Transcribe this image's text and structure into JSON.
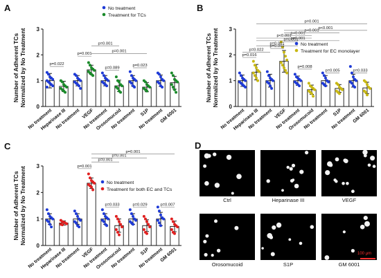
{
  "chart_data": [
    {
      "type": "scatter",
      "panel_label": "A",
      "ylabel": "Number of Adherent TCs\nNormalized by No Treatment",
      "ylim": [
        0,
        3
      ],
      "yticks": [
        0,
        1,
        2,
        3
      ],
      "categories": [
        "No treatment",
        "Heparinase III",
        "No treatment",
        "VEGF",
        "No treatment",
        "Orosomucoid",
        "No treatment",
        "S1P",
        "No treatment",
        "GM 6001"
      ],
      "legend": [
        {
          "name": "No treatment",
          "color": "#1f3bd6"
        },
        {
          "name": "Treatment for TCs",
          "color": "#1a8a2a"
        }
      ],
      "legend_position": "top-right",
      "series": [
        {
          "name": "No treatment",
          "color": "#1f3bd6",
          "groups": [
            {
              "cat": 0,
              "mean": 1.0,
              "sd": 0.28,
              "points": [
                1.32,
                1.25,
                1.15,
                1.1,
                1.05,
                1.0,
                0.95,
                0.9,
                0.85,
                0.8,
                0.75
              ]
            },
            {
              "cat": 2,
              "mean": 1.0,
              "sd": 0.2,
              "points": [
                1.25,
                1.2,
                1.1,
                1.05,
                1.0,
                0.95,
                0.9,
                0.85,
                0.8,
                0.7
              ]
            },
            {
              "cat": 4,
              "mean": 1.0,
              "sd": 0.2,
              "points": [
                1.3,
                1.2,
                1.1,
                1.05,
                1.0,
                0.95,
                0.9,
                0.85,
                0.8
              ]
            },
            {
              "cat": 6,
              "mean": 1.0,
              "sd": 0.2,
              "points": [
                1.35,
                1.2,
                1.1,
                1.05,
                1.0,
                0.95,
                0.9,
                0.8,
                0.75
              ]
            },
            {
              "cat": 8,
              "mean": 1.0,
              "sd": 0.22,
              "points": [
                1.3,
                1.25,
                1.15,
                1.05,
                1.0,
                0.95,
                0.9,
                0.8,
                0.75
              ]
            }
          ]
        },
        {
          "name": "Treatment for TCs",
          "color": "#1a8a2a",
          "groups": [
            {
              "cat": 1,
              "mean": 0.78,
              "sd": 0.2,
              "points": [
                1.0,
                0.95,
                0.85,
                0.8,
                0.75,
                0.7,
                0.65,
                0.6,
                0.55
              ]
            },
            {
              "cat": 3,
              "mean": 1.42,
              "sd": 0.18,
              "points": [
                1.7,
                1.6,
                1.5,
                1.45,
                1.4,
                1.35,
                1.3,
                1.25,
                1.2
              ]
            },
            {
              "cat": 5,
              "mean": 0.8,
              "sd": 0.22,
              "points": [
                1.15,
                1.0,
                0.95,
                0.85,
                0.8,
                0.75,
                0.7,
                0.6,
                0.55
              ]
            },
            {
              "cat": 7,
              "mean": 0.75,
              "sd": 0.18,
              "points": [
                1.0,
                0.95,
                0.85,
                0.8,
                0.75,
                0.7,
                0.65,
                0.6
              ]
            },
            {
              "cat": 9,
              "mean": 0.92,
              "sd": 0.25,
              "points": [
                1.3,
                1.2,
                1.05,
                1.0,
                0.95,
                0.85,
                0.75,
                0.65,
                0.55
              ]
            }
          ]
        }
      ],
      "annotations": [
        {
          "text": "p=0.022",
          "from": 0,
          "to": 1,
          "y": 1.55
        },
        {
          "text": "p=0.001",
          "from": 2,
          "to": 3,
          "y": 1.95
        },
        {
          "text": "p=0.089",
          "from": 4,
          "to": 5,
          "y": 1.4
        },
        {
          "text": "p=0.023",
          "from": 6,
          "to": 7,
          "y": 1.5
        },
        {
          "text": "p=0.001",
          "from": 3,
          "to": 5,
          "y": 2.35
        },
        {
          "text": "p=0.001",
          "from": 3,
          "to": 7,
          "y": 2.05
        }
      ]
    },
    {
      "type": "scatter",
      "panel_label": "B",
      "ylabel": "Number of Adherent TCs\nNormalized by No Treatment",
      "ylim": [
        0,
        3
      ],
      "yticks": [
        0,
        1,
        2,
        3
      ],
      "categories": [
        "No treatment",
        "Heparinase III",
        "No treatment",
        "VEGF",
        "No treatment",
        "Orosomucoid",
        "No treatment",
        "S1P",
        "No treatment",
        "GM 6001"
      ],
      "legend": [
        {
          "name": "No treatment",
          "color": "#1f3bd6"
        },
        {
          "name": "Treatment for EC monolayer",
          "color": "#c8b814"
        }
      ],
      "legend_position": "right",
      "series": [
        {
          "name": "No treatment",
          "color": "#1f3bd6",
          "groups": [
            {
              "cat": 0,
              "mean": 1.0,
              "sd": 0.22,
              "points": [
                1.3,
                1.2,
                1.1,
                1.05,
                1.0,
                0.95,
                0.9,
                0.85,
                0.8,
                0.75
              ]
            },
            {
              "cat": 2,
              "mean": 1.0,
              "sd": 0.25,
              "points": [
                1.35,
                1.2,
                1.1,
                1.05,
                1.0,
                0.95,
                0.9,
                0.8,
                0.7
              ]
            },
            {
              "cat": 4,
              "mean": 1.0,
              "sd": 0.18,
              "points": [
                1.25,
                1.15,
                1.1,
                1.05,
                1.0,
                0.95,
                0.9,
                0.85,
                0.8
              ]
            },
            {
              "cat": 6,
              "mean": 1.0,
              "sd": 0.2,
              "points": [
                1.3,
                1.2,
                1.1,
                1.0,
                0.95,
                0.9,
                0.85,
                0.8
              ]
            },
            {
              "cat": 8,
              "mean": 1.0,
              "sd": 0.25,
              "points": [
                1.55,
                1.3,
                1.15,
                1.05,
                1.0,
                0.95,
                0.9,
                0.8,
                0.75
              ]
            }
          ]
        },
        {
          "name": "Treatment for EC monolayer",
          "color": "#c8b814",
          "groups": [
            {
              "cat": 1,
              "mean": 1.33,
              "sd": 0.3,
              "points": [
                1.75,
                1.6,
                1.5,
                1.4,
                1.35,
                1.3,
                1.2,
                1.1,
                1.0
              ]
            },
            {
              "cat": 3,
              "mean": 1.75,
              "sd": 0.42,
              "points": [
                2.5,
                2.3,
                2.1,
                1.95,
                1.8,
                1.7,
                1.6,
                1.5,
                1.4,
                1.3
              ]
            },
            {
              "cat": 5,
              "mean": 0.65,
              "sd": 0.18,
              "points": [
                0.9,
                0.8,
                0.75,
                0.7,
                0.65,
                0.6,
                0.55,
                0.5,
                0.4
              ]
            },
            {
              "cat": 7,
              "mean": 0.7,
              "sd": 0.15,
              "points": [
                0.9,
                0.85,
                0.75,
                0.7,
                0.65,
                0.6,
                0.55,
                0.5
              ]
            },
            {
              "cat": 9,
              "mean": 0.72,
              "sd": 0.22,
              "points": [
                1.0,
                0.95,
                0.85,
                0.75,
                0.7,
                0.6,
                0.55,
                0.45
              ]
            }
          ]
        }
      ],
      "annotations": [
        {
          "text": "p=0.016",
          "from": 0,
          "to": 1,
          "y": 1.9
        },
        {
          "text": "p=0.022",
          "from": 0,
          "to": 2,
          "y": 2.1
        },
        {
          "text": "p=0.001",
          "from": 2,
          "to": 3,
          "y": 2.25
        },
        {
          "text": "p=0.001",
          "from": 1,
          "to": 4,
          "y": 2.35
        },
        {
          "text": "p=0.001",
          "from": 3,
          "to": 4,
          "y": 2.5
        },
        {
          "text": "p=0.008",
          "from": 4,
          "to": 5,
          "y": 1.45
        },
        {
          "text": "p=0.005",
          "from": 6,
          "to": 7,
          "y": 1.3
        },
        {
          "text": "p=0.033",
          "from": 8,
          "to": 9,
          "y": 1.3
        },
        {
          "text": "p<0.001",
          "from": 1,
          "to": 5,
          "y": 2.65
        },
        {
          "text": "p<0.001",
          "from": 3,
          "to": 5,
          "y": 2.75
        },
        {
          "text": "p<0.001",
          "from": 3,
          "to": 7,
          "y": 2.85
        },
        {
          "text": "p<0.001",
          "from": 3,
          "to": 9,
          "y": 2.95
        },
        {
          "text": "p=0.001",
          "from": 1,
          "to": 7,
          "y": 2.55
        },
        {
          "text": "p=0.001",
          "from": 1,
          "to": 9,
          "y": 3.2
        }
      ]
    },
    {
      "type": "scatter",
      "panel_label": "C",
      "ylabel": "Number of Adherent TCs\nNormalized by No Treatment",
      "ylim": [
        0,
        3
      ],
      "yticks": [
        0,
        1,
        2,
        3
      ],
      "categories": [
        "No treatment",
        "Heparinase III",
        "No treatment",
        "VEGF",
        "No treatment",
        "Orosomucoid",
        "No treatment",
        "S1P",
        "No treatment",
        "GM 6001"
      ],
      "legend": [
        {
          "name": "No treatment",
          "color": "#1f3bd6"
        },
        {
          "name": "Treatment for both EC and TCs",
          "color": "#e02020"
        }
      ],
      "legend_position": "right",
      "series": [
        {
          "name": "No treatment",
          "color": "#1f3bd6",
          "groups": [
            {
              "cat": 0,
              "mean": 1.0,
              "sd": 0.2,
              "points": [
                1.35,
                1.2,
                1.1,
                1.05,
                1.0,
                0.95,
                0.9,
                0.8,
                0.7
              ]
            },
            {
              "cat": 2,
              "mean": 1.0,
              "sd": 0.2,
              "points": [
                1.3,
                1.2,
                1.1,
                1.0,
                0.95,
                0.9,
                0.85,
                0.75,
                0.7
              ]
            },
            {
              "cat": 4,
              "mean": 1.0,
              "sd": 0.2,
              "points": [
                1.35,
                1.2,
                1.1,
                1.05,
                1.0,
                0.95,
                0.9,
                0.8,
                0.75
              ]
            },
            {
              "cat": 6,
              "mean": 1.0,
              "sd": 0.2,
              "points": [
                1.35,
                1.2,
                1.1,
                1.0,
                0.95,
                0.9,
                0.85,
                0.8
              ]
            },
            {
              "cat": 8,
              "mean": 1.0,
              "sd": 0.25,
              "points": [
                1.45,
                1.3,
                1.15,
                1.05,
                1.0,
                0.95,
                0.85,
                0.75
              ]
            }
          ]
        },
        {
          "name": "Treatment for both EC and TCs",
          "color": "#e02020",
          "groups": [
            {
              "cat": 1,
              "mean": 0.85,
              "sd": 0.08,
              "points": [
                0.95,
                0.9,
                0.88,
                0.85,
                0.82,
                0.8,
                0.78
              ]
            },
            {
              "cat": 3,
              "mean": 2.35,
              "sd": 0.2,
              "points": [
                2.7,
                2.55,
                2.45,
                2.4,
                2.35,
                2.3,
                2.25,
                2.2,
                2.1
              ]
            },
            {
              "cat": 5,
              "mean": 0.75,
              "sd": 0.25,
              "points": [
                1.1,
                1.0,
                0.9,
                0.8,
                0.7,
                0.6,
                0.5,
                0.4
              ]
            },
            {
              "cat": 7,
              "mean": 0.75,
              "sd": 0.22,
              "points": [
                1.1,
                1.0,
                0.9,
                0.8,
                0.7,
                0.6,
                0.5,
                0.45
              ]
            },
            {
              "cat": 9,
              "mean": 0.72,
              "sd": 0.2,
              "points": [
                1.0,
                0.9,
                0.8,
                0.75,
                0.7,
                0.6,
                0.5,
                0.45
              ]
            }
          ]
        }
      ],
      "annotations": [
        {
          "text": "p=0.001",
          "from": 2,
          "to": 3,
          "y": 2.9
        },
        {
          "text": "p=0.033",
          "from": 4,
          "to": 5,
          "y": 1.45
        },
        {
          "text": "p=0.029",
          "from": 6,
          "to": 7,
          "y": 1.45
        },
        {
          "text": "p=0.007",
          "from": 8,
          "to": 9,
          "y": 1.45
        },
        {
          "text": "p=0.001",
          "from": 3,
          "to": 5,
          "y": 3.15
        },
        {
          "text": "p=0.001",
          "from": 3,
          "to": 7,
          "y": 3.3
        },
        {
          "text": "p=0.001",
          "from": 3,
          "to": 9,
          "y": 3.45
        }
      ]
    }
  ],
  "panel_d": {
    "label": "D",
    "captions": [
      "Ctrl",
      "Heparinase III",
      "VEGF",
      "Orosomucoid",
      "S1P",
      "GM 6001"
    ],
    "scale_bar": "100 μm"
  }
}
